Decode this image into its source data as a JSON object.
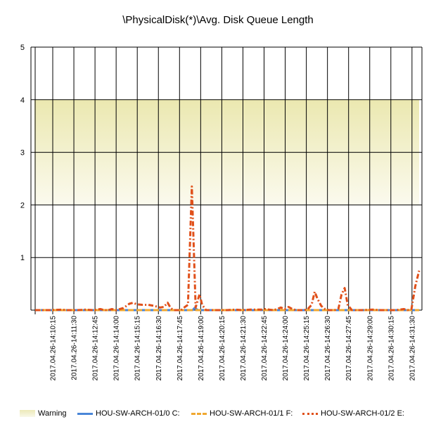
{
  "chart_data": {
    "type": "line",
    "title": "\\PhysicalDisk(*)\\Avg. Disk Queue Length",
    "ylim": [
      0,
      5
    ],
    "yticks": [
      "",
      "1",
      "2",
      "3",
      "4",
      "5"
    ],
    "xlim": [
      0,
      100
    ],
    "x_tick_labels": [
      "2017.04.26-14:10:15",
      "2017.04.26-14:11:30",
      "2017.04.26-14:12:45",
      "2017.04.26-14:14:00",
      "2017.04.26-14:15:15",
      "2017.04.26-14:16:30",
      "2017.04.26-14:17:45",
      "2017.04.26-14:19:00",
      "2017.04.26-14:20:15",
      "2017.04.26-14:21:30",
      "2017.04.26-14:22:45",
      "2017.04.26-14:24:00",
      "2017.04.26-14:25:15",
      "2017.04.26-14:26:30",
      "2017.04.26-14:27:45",
      "2017.04.26-14:29:00",
      "2017.04.26-14:30:15",
      "2017.04.26-14:31:30"
    ],
    "grid": true,
    "warning_band": {
      "name": "Warning",
      "from": 2,
      "to": 4,
      "color": "#efedb9"
    },
    "legend_position": "bottom",
    "series": [
      {
        "name": "HOU-SW-ARCH-01/0 C:",
        "color": "#4a86d8",
        "style": "solid",
        "points": [
          [
            0,
            0
          ],
          [
            20,
            0
          ],
          [
            41,
            0
          ],
          [
            41.5,
            0.04
          ],
          [
            42.5,
            0
          ],
          [
            60,
            0
          ],
          [
            100,
            0
          ]
        ]
      },
      {
        "name": "HOU-SW-ARCH-01/1 F:",
        "color": "#f0a830",
        "style": "dashed",
        "points": [
          [
            0,
            0
          ],
          [
            100,
            0
          ]
        ]
      },
      {
        "name": "HOU-SW-ARCH-01/2 E:",
        "color": "#e0501a",
        "style": "dashdot",
        "points": [
          [
            0,
            0
          ],
          [
            4,
            0
          ],
          [
            7,
            0.01
          ],
          [
            8,
            0
          ],
          [
            11,
            0
          ],
          [
            13,
            0.01
          ],
          [
            15,
            0
          ],
          [
            17,
            0.02
          ],
          [
            18,
            0
          ],
          [
            19,
            0
          ],
          [
            20,
            0.02
          ],
          [
            21,
            0
          ],
          [
            23,
            0.04
          ],
          [
            24.5,
            0.12
          ],
          [
            25.5,
            0.14
          ],
          [
            26.5,
            0.11
          ],
          [
            28,
            0.1
          ],
          [
            29.5,
            0.1
          ],
          [
            31,
            0.08
          ],
          [
            32.5,
            0.05
          ],
          [
            33.5,
            0.06
          ],
          [
            34.5,
            0.14
          ],
          [
            35.3,
            0.04
          ],
          [
            36,
            0
          ],
          [
            38,
            0
          ],
          [
            39,
            0.06
          ],
          [
            39.8,
            0.1
          ],
          [
            40.8,
            2.35
          ],
          [
            41.8,
            0.05
          ],
          [
            42.8,
            0.3
          ],
          [
            43.5,
            0.1
          ],
          [
            44.5,
            0
          ],
          [
            46,
            0
          ],
          [
            50,
            0
          ],
          [
            52,
            0.01
          ],
          [
            54,
            0
          ],
          [
            56,
            0.01
          ],
          [
            59,
            0.01
          ],
          [
            60,
            0.02
          ],
          [
            61,
            0.01
          ],
          [
            62,
            0
          ],
          [
            63,
            0.02
          ],
          [
            64,
            0.05
          ],
          [
            65,
            0.02
          ],
          [
            66,
            0.06
          ],
          [
            67,
            0.02
          ],
          [
            68,
            0
          ],
          [
            70,
            0
          ],
          [
            71,
            0.02
          ],
          [
            72,
            0.1
          ],
          [
            72.8,
            0.35
          ],
          [
            73.5,
            0.22
          ],
          [
            74.5,
            0.08
          ],
          [
            75.5,
            0.02
          ],
          [
            76.5,
            0
          ],
          [
            78,
            0
          ],
          [
            79,
            0.03
          ],
          [
            79.8,
            0.3
          ],
          [
            80.6,
            0.42
          ],
          [
            81.4,
            0.1
          ],
          [
            82.5,
            0
          ],
          [
            85,
            0
          ],
          [
            88,
            0.01
          ],
          [
            90,
            0
          ],
          [
            94,
            0
          ],
          [
            96,
            0.02
          ],
          [
            97,
            0
          ],
          [
            98,
            0.02
          ],
          [
            99,
            0.45
          ],
          [
            100,
            0.75
          ]
        ]
      }
    ]
  }
}
